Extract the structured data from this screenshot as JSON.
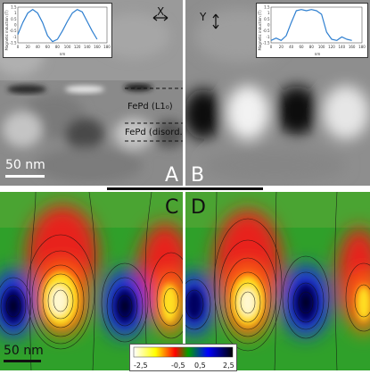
{
  "panels": {
    "A": {
      "label": "A"
    },
    "B": {
      "label": "B"
    },
    "C": {
      "label": "C"
    },
    "D": {
      "label": "D"
    }
  },
  "layers": {
    "l10": "FePd (L1₀)",
    "disordered": "FePd (disord.)"
  },
  "axes": {
    "x": "X",
    "y": "Y"
  },
  "scalebars": {
    "top": "50 nm",
    "bottom": "50 nm"
  },
  "colorbar": {
    "ticks": [
      "-2,5",
      "-0,5",
      "0,5",
      "2,5"
    ],
    "colors": [
      "#ffffff",
      "#ffff00",
      "#ff0000",
      "#00a000",
      "#0000ff",
      "#000000"
    ]
  },
  "chart_data": [
    {
      "type": "line",
      "ylabel": "Magnetic induction (T)",
      "xlabel": "nm",
      "x_ticks": [
        "0",
        "20",
        "40",
        "60",
        "80",
        "100",
        "120",
        "140",
        "160",
        "180"
      ],
      "y_ticks": [
        "1.5",
        "1",
        "0.5",
        "0",
        "-0.5",
        "-1",
        "-1.5"
      ],
      "xlim": [
        0,
        180
      ],
      "ylim": [
        -1.5,
        1.5
      ],
      "x": [
        0,
        10,
        20,
        30,
        40,
        50,
        60,
        70,
        80,
        90,
        100,
        110,
        120,
        130,
        140,
        150,
        160
      ],
      "values": [
        -0.8,
        0.2,
        1.0,
        1.3,
        1.0,
        0.2,
        -0.9,
        -1.4,
        -1.2,
        -0.5,
        0.3,
        1.0,
        1.3,
        1.1,
        0.3,
        -0.5,
        -1.2
      ]
    },
    {
      "type": "line",
      "ylabel": "Magnetic induction (T)",
      "xlabel": "nm",
      "x_ticks": [
        "0",
        "20",
        "40",
        "60",
        "80",
        "100",
        "120",
        "140",
        "160",
        "180"
      ],
      "y_ticks": [
        "1.5",
        "1",
        "0.5",
        "0",
        "-0.5",
        "-1",
        "-1.5"
      ],
      "xlim": [
        0,
        180
      ],
      "ylim": [
        -1.5,
        1.5
      ],
      "x": [
        0,
        10,
        20,
        30,
        40,
        50,
        60,
        70,
        80,
        90,
        100,
        110,
        120,
        130,
        140,
        150,
        160
      ],
      "values": [
        -1.3,
        -1.1,
        -1.3,
        -0.9,
        0.2,
        1.2,
        1.3,
        1.2,
        1.3,
        1.2,
        0.9,
        -0.6,
        -1.2,
        -1.3,
        -1.0,
        -1.2,
        -1.3
      ]
    }
  ]
}
